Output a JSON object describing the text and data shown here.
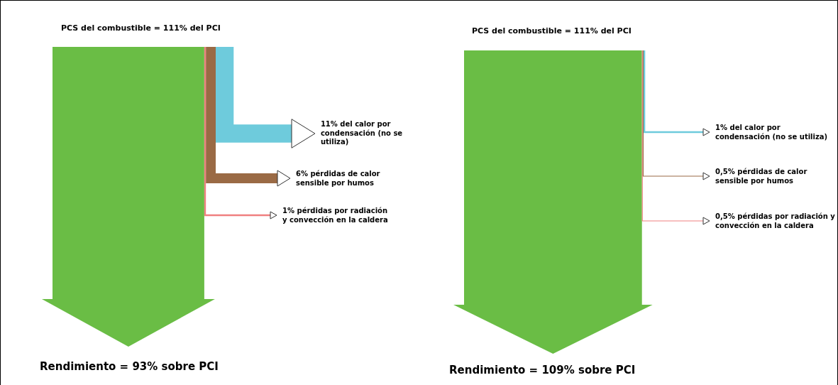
{
  "chart_data": [
    {
      "type": "other",
      "title": "PCS del combustible = 111% del PCI",
      "categories": [
        "Rendimiento =",
        "del calor por condensación (no se utiliza)",
        "pérdidas de calor sensible por humos",
        "pérdidas por radiación y convección en la caldera"
      ],
      "values": [
        93,
        11,
        6,
        1
      ],
      "value_labels": [
        "93% sobre PCI",
        "11%",
        "6%",
        "1%"
      ],
      "colors": [
        "#6abd45",
        "#6ecbdc",
        "#9a6a45",
        "#f08080"
      ]
    },
    {
      "type": "other",
      "title": "PCS del combustible = 111% del PCI",
      "categories": [
        "Rendimiento =",
        "del calor por condensación (no se utiliza)",
        "pérdidas de calor sensible por humos",
        "pérdidas por radiación y convección en la caldera"
      ],
      "values": [
        109,
        1,
        0.5,
        0.5
      ],
      "value_labels": [
        "109% sobre PCI",
        "1%",
        "0,5%",
        "0,5%"
      ],
      "colors": [
        "#6abd45",
        "#6ecbdc",
        "#9a6a45",
        "#f08080"
      ]
    }
  ]
}
